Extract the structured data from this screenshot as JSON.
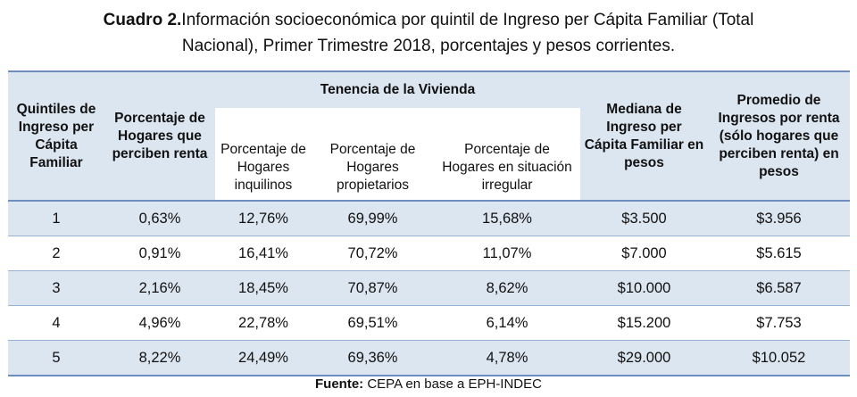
{
  "caption": {
    "label": "Cuadro 2.",
    "text_line1": "Información socioeconómica por quintil de Ingreso per Cápita Familiar (Total",
    "text_line2": "Nacional), Primer Trimestre 2018, porcentajes y pesos corrientes."
  },
  "table": {
    "headers": {
      "quintiles": "Quintiles de Ingreso per Cápita Familiar",
      "porcentaje_renta": "Porcentaje de Hogares que perciben renta",
      "tenencia": "Tenencia de la Vivienda",
      "inquilinos": "Porcentaje de Hogares inquilinos",
      "propietarios": "Porcentaje de Hogares propietarios",
      "irregular": "Porcentaje de Hogares en situación irregular",
      "mediana": "Mediana de Ingreso per Cápita Familiar en pesos",
      "promedio": "Promedio de Ingresos por renta (sólo hogares que perciben renta) en pesos"
    },
    "rows": [
      [
        "1",
        "0,63%",
        "12,76%",
        "69,99%",
        "15,68%",
        "$3.500",
        "$3.956"
      ],
      [
        "2",
        "0,91%",
        "16,41%",
        "70,72%",
        "11,07%",
        "$7.000",
        "$5.615"
      ],
      [
        "3",
        "2,16%",
        "18,45%",
        "70,87%",
        "8,62%",
        "$10.000",
        "$6.587"
      ],
      [
        "4",
        "4,96%",
        "22,78%",
        "69,51%",
        "6,14%",
        "$15.200",
        "$7.753"
      ],
      [
        "5",
        "8,22%",
        "24,49%",
        "69,36%",
        "4,78%",
        "$29.000",
        "$10.052"
      ]
    ]
  },
  "source": {
    "label": "Fuente:",
    "text": "CEPA en base a EPH-INDEC"
  }
}
